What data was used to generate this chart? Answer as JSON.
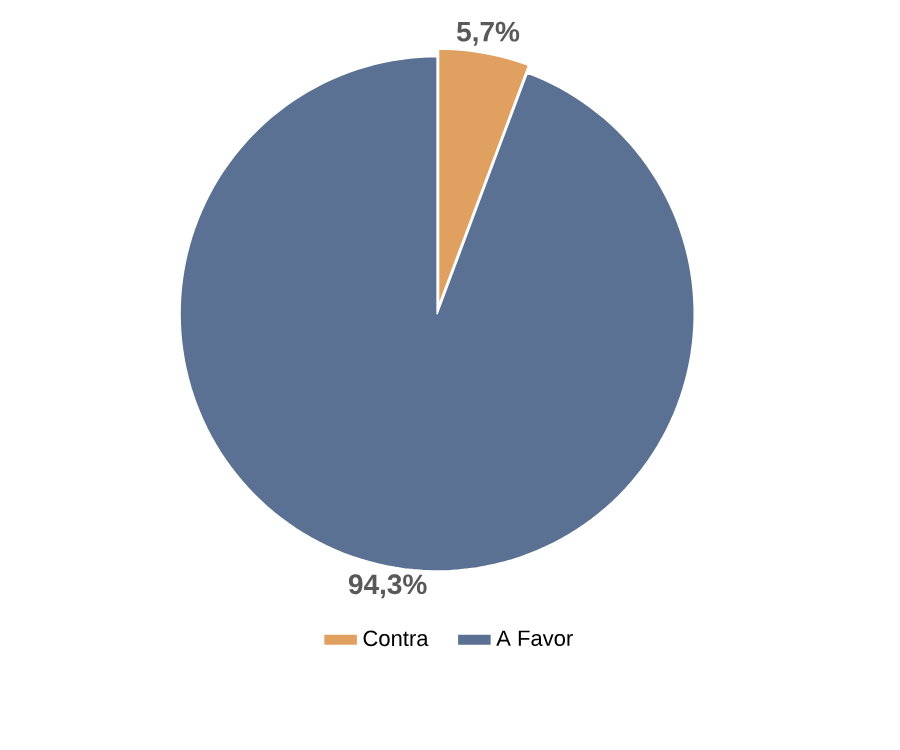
{
  "chart_data": {
    "type": "pie",
    "categories": [
      "Contra",
      "A Favor"
    ],
    "values": [
      5.7,
      94.3
    ],
    "colors": [
      "#e0a060",
      "#5a7194"
    ],
    "value_labels": [
      "5,7%",
      "94,3%"
    ],
    "legend": "bottom"
  }
}
